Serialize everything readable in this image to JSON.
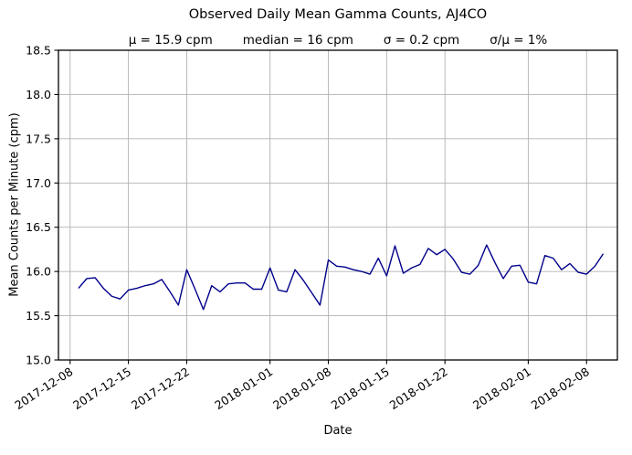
{
  "chart_data": {
    "type": "line",
    "title": "Observed Daily Mean Gamma Counts, AJ4CO",
    "stats": [
      "μ = 15.9 cpm",
      "median = 16 cpm",
      "σ = 0.2 cpm",
      "σ/μ = 1%"
    ],
    "xlabel": "Date",
    "ylabel": "Mean Counts per Minute (cpm)",
    "x_epoch": "2017-12-08",
    "xlim_days": [
      -1.4,
      65.7
    ],
    "ylim": [
      15.0,
      18.5
    ],
    "yticks": [
      15.0,
      15.5,
      16.0,
      16.5,
      17.0,
      17.5,
      18.0,
      18.5
    ],
    "xticks": [
      "2017-12-08",
      "2017-12-15",
      "2017-12-22",
      "2018-01-01",
      "2018-01-08",
      "2018-01-15",
      "2018-01-22",
      "2018-02-01",
      "2018-02-08"
    ],
    "grid": true,
    "legend": "none",
    "line_color": "#00008B",
    "grid_color": "#b2b2b2",
    "series": [
      {
        "name": "daily-mean-gamma-counts",
        "dates": [
          "2017-12-09",
          "2017-12-10",
          "2017-12-11",
          "2017-12-12",
          "2017-12-13",
          "2017-12-14",
          "2017-12-15",
          "2017-12-16",
          "2017-12-17",
          "2017-12-18",
          "2017-12-19",
          "2017-12-20",
          "2017-12-21",
          "2017-12-22",
          "2017-12-23",
          "2017-12-24",
          "2017-12-25",
          "2017-12-26",
          "2017-12-27",
          "2017-12-28",
          "2017-12-29",
          "2017-12-30",
          "2017-12-31",
          "2018-01-01",
          "2018-01-02",
          "2018-01-03",
          "2018-01-04",
          "2018-01-05",
          "2018-01-06",
          "2018-01-07",
          "2018-01-08",
          "2018-01-09",
          "2018-01-10",
          "2018-01-11",
          "2018-01-12",
          "2018-01-13",
          "2018-01-14",
          "2018-01-15",
          "2018-01-16",
          "2018-01-17",
          "2018-01-18",
          "2018-01-19",
          "2018-01-20",
          "2018-01-21",
          "2018-01-22",
          "2018-01-23",
          "2018-01-24",
          "2018-01-25",
          "2018-01-26",
          "2018-01-27",
          "2018-01-28",
          "2018-01-29",
          "2018-01-30",
          "2018-01-31",
          "2018-02-01",
          "2018-02-02",
          "2018-02-03",
          "2018-02-04",
          "2018-02-05",
          "2018-02-06",
          "2018-02-07",
          "2018-02-08",
          "2018-02-09",
          "2018-02-10"
        ],
        "values": [
          15.81,
          15.92,
          15.93,
          15.81,
          15.72,
          15.69,
          15.79,
          15.81,
          15.84,
          15.86,
          15.91,
          15.77,
          15.62,
          16.02,
          15.8,
          15.57,
          15.84,
          15.77,
          15.86,
          15.87,
          15.87,
          15.8,
          15.8,
          16.04,
          15.79,
          15.77,
          16.02,
          15.9,
          15.76,
          15.62,
          16.13,
          16.06,
          16.05,
          16.02,
          16.0,
          15.97,
          16.15,
          15.95,
          16.29,
          15.98,
          16.04,
          16.08,
          16.26,
          16.19,
          16.25,
          16.14,
          15.99,
          15.97,
          16.07,
          16.3,
          16.1,
          15.92,
          16.06,
          16.07,
          15.88,
          15.86,
          16.18,
          16.15,
          16.02,
          16.09,
          15.99,
          15.97,
          16.06,
          16.2
        ]
      }
    ]
  }
}
